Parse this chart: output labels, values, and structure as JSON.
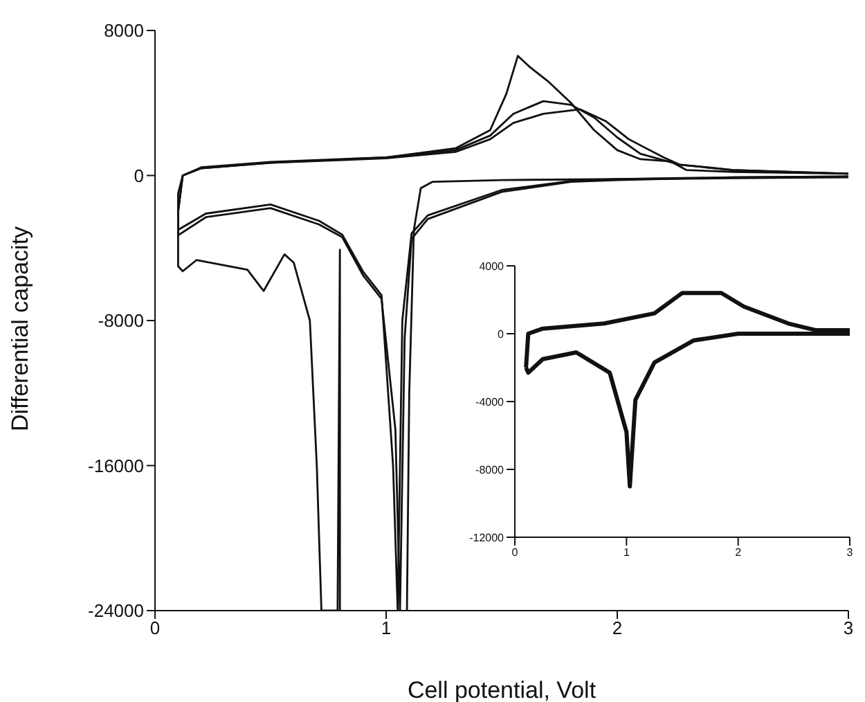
{
  "chart_data": [
    {
      "type": "line",
      "xlabel": "Cell potential, Volt",
      "ylabel": "Differential capacity",
      "xlim": [
        0,
        3
      ],
      "xticks": [
        0,
        1,
        2,
        3
      ],
      "ylim": [
        -24000,
        8000
      ],
      "yticks": [
        -24000,
        -16000,
        -8000,
        0,
        8000
      ],
      "marker": "none",
      "series": [
        {
          "color": "#111111",
          "x": [
            3,
            2.5,
            2,
            1.5,
            1.2,
            1.15,
            1.12,
            1.1,
            1.09,
            null,
            0.8,
            0.8,
            0.79,
            0.72,
            0.7,
            0.67,
            0.6,
            0.56,
            0.47,
            0.4,
            0.18,
            0.12,
            0.1,
            0.1,
            0.12,
            0.2,
            0.5,
            1.0,
            1.3,
            1.45,
            1.52,
            1.57,
            1.62,
            1.7,
            1.8,
            1.9,
            2.0,
            2.1,
            2.23,
            2.3,
            2.5,
            3
          ],
          "values": [
            -100,
            -150,
            -200,
            -250,
            -350,
            -700,
            -3000,
            -12000,
            -24000,
            null,
            -24000,
            -4100,
            -24000,
            -24000,
            -16000,
            -8000,
            -4800,
            -4350,
            -6370,
            -5200,
            -4660,
            -5280,
            -5000,
            -1000,
            0,
            400,
            700,
            1000,
            1500,
            2500,
            4500,
            6600,
            6000,
            5200,
            4000,
            2500,
            1400,
            900,
            780,
            300,
            200,
            100
          ]
        },
        {
          "color": "#111111",
          "x": [
            3,
            2.5,
            2,
            1.8,
            1.5,
            1.18,
            1.11,
            1.07,
            1.05,
            1.03,
            0.98,
            0.9,
            0.81,
            0.71,
            0.5,
            0.22,
            0.1,
            0.1,
            0.12,
            0.2,
            0.5,
            1.0,
            1.3,
            1.45,
            1.55,
            1.68,
            1.8,
            1.9,
            2.0,
            2.1,
            2.27,
            2.5,
            3
          ],
          "values": [
            -50,
            -100,
            -200,
            -300,
            -800,
            -2200,
            -3200,
            -8000,
            -24000,
            -16000,
            -6600,
            -5300,
            -3260,
            -2500,
            -1600,
            -2100,
            -3000,
            -2000,
            0,
            450,
            750,
            1000,
            1400,
            2200,
            3400,
            4100,
            3900,
            3200,
            2100,
            1200,
            600,
            300,
            100
          ]
        },
        {
          "color": "#111111",
          "x": [
            3,
            2.5,
            2,
            1.8,
            1.5,
            1.18,
            1.11,
            1.08,
            1.06,
            1.04,
            0.98,
            0.9,
            0.81,
            0.71,
            0.5,
            0.22,
            0.1,
            0.1,
            0.12,
            0.2,
            0.5,
            1.0,
            1.3,
            1.45,
            1.55,
            1.68,
            1.84,
            1.95,
            2.05,
            2.2,
            2.27,
            2.5,
            3
          ],
          "values": [
            -50,
            -100,
            -250,
            -350,
            -900,
            -2400,
            -3500,
            -9000,
            -24000,
            -14000,
            -6800,
            -5500,
            -3400,
            -2700,
            -1800,
            -2300,
            -3300,
            -2000,
            0,
            400,
            700,
            950,
            1300,
            2000,
            2900,
            3400,
            3650,
            3000,
            2000,
            1000,
            600,
            300,
            100
          ]
        }
      ]
    },
    {
      "type": "line",
      "xlim": [
        0,
        3
      ],
      "xticks": [
        0,
        1,
        2,
        3
      ],
      "ylim": [
        -12000,
        4000
      ],
      "yticks": [
        -12000,
        -8000,
        -4000,
        0,
        4000
      ],
      "marker": "none",
      "series": [
        {
          "color": "#111111",
          "x": [
            3,
            2.0,
            1.6,
            1.25,
            1.08,
            1.03,
            1.0,
            0.85,
            0.55,
            0.25,
            0.12,
            0.1
          ],
          "values": [
            0,
            0,
            -400,
            -1700,
            -3900,
            -9000,
            -5800,
            -2300,
            -1100,
            -1500,
            -2300,
            -2000
          ]
        },
        {
          "color": "#111111",
          "x": [
            0.1,
            0.12,
            0.25,
            0.8,
            1.25,
            1.5,
            1.85,
            2.05,
            2.45,
            2.7,
            3
          ],
          "values": [
            -2000,
            0,
            300,
            600,
            1200,
            2400,
            2400,
            1600,
            600,
            200,
            200
          ]
        }
      ]
    }
  ]
}
